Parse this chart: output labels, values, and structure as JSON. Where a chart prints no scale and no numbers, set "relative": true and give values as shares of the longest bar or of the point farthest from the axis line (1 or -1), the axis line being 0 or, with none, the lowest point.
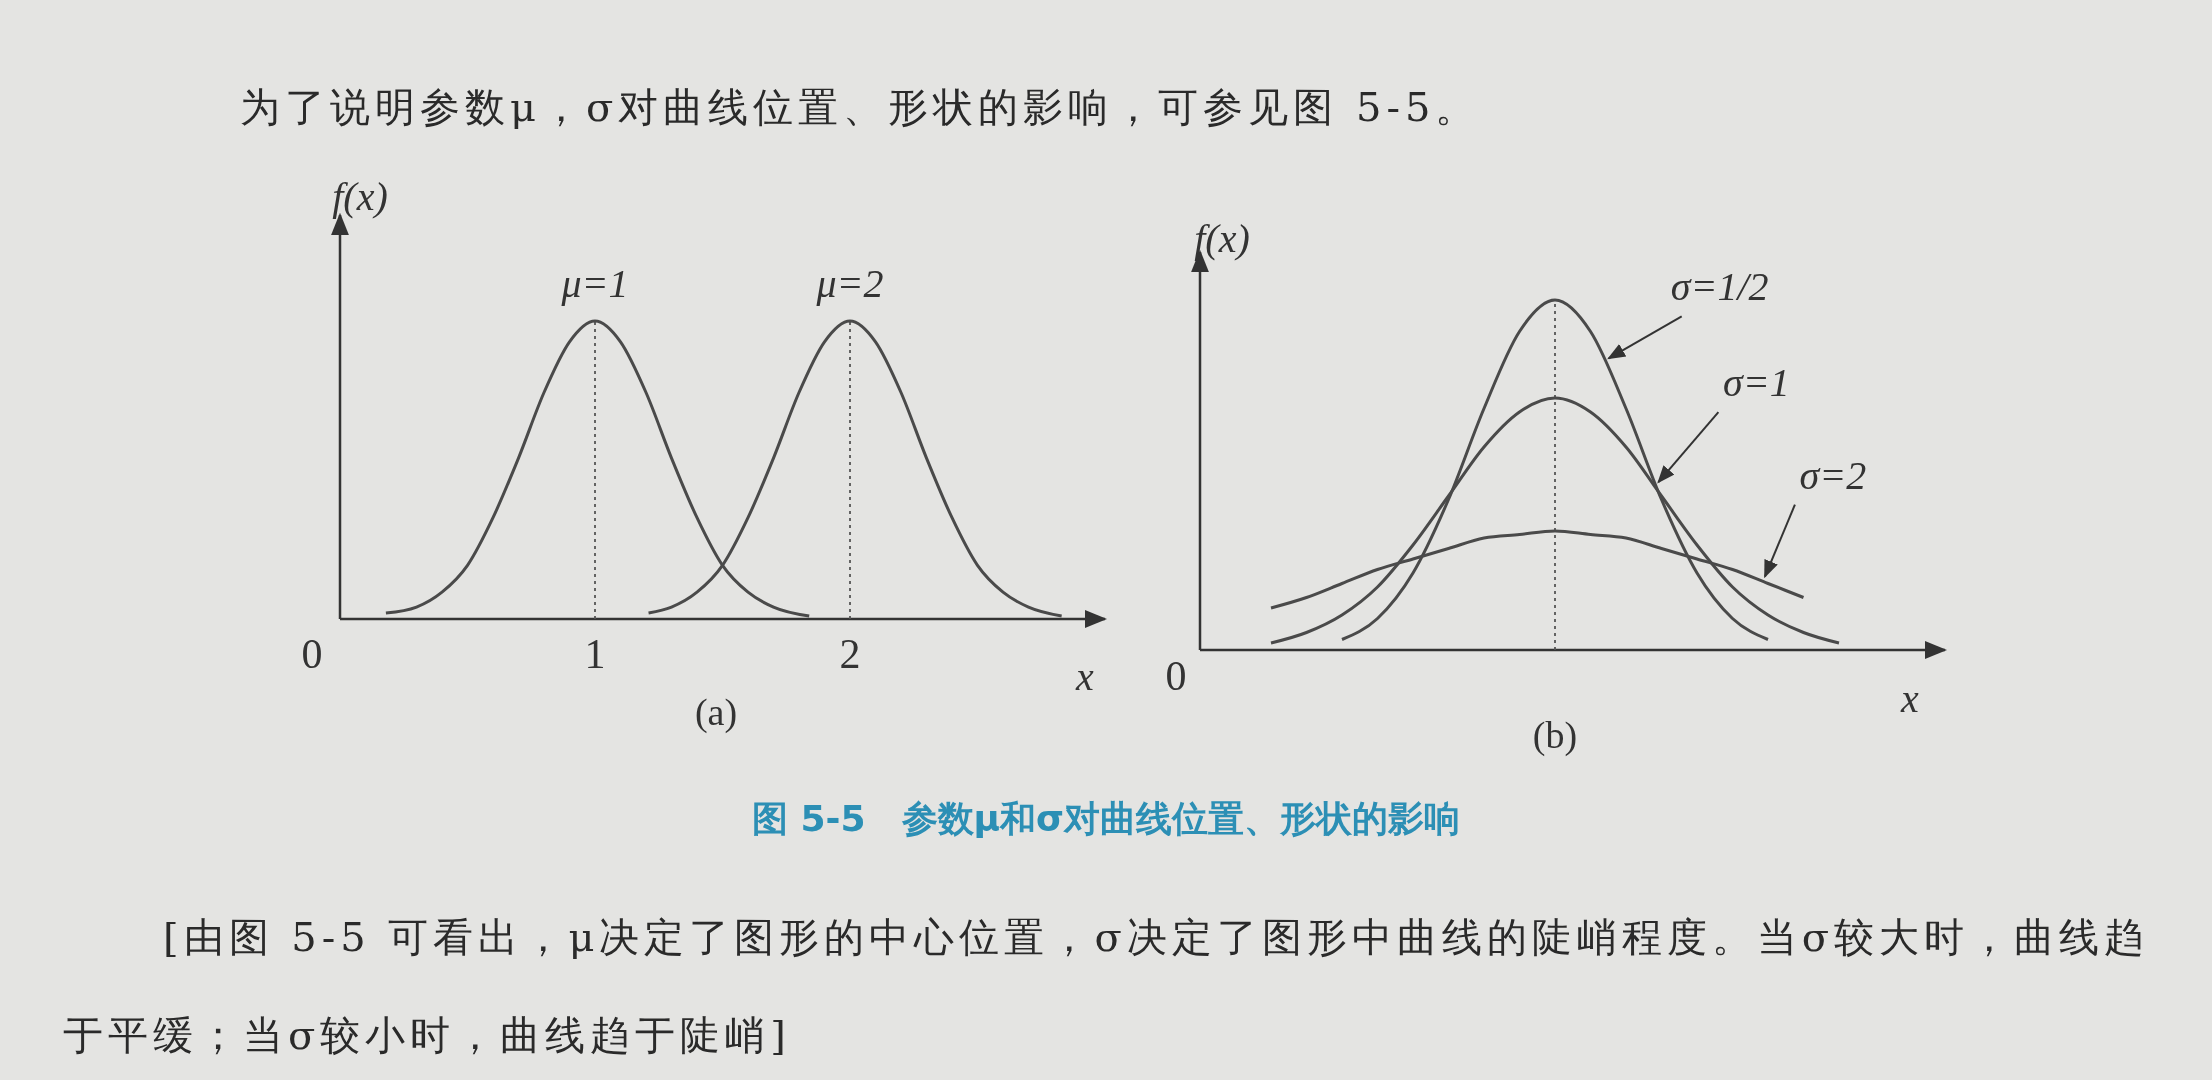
{
  "chart_data": [
    {
      "type": "line",
      "title": "(a)",
      "xlabel": "x",
      "ylabel": "f(x)",
      "relative": true,
      "xlim": [
        0,
        3
      ],
      "xticks": [
        0,
        1,
        2
      ],
      "tick_labels": "x",
      "grid": false,
      "legend": false,
      "line_style": "solid",
      "marker": "none",
      "ref_lines": [
        {
          "axis": "x",
          "value": 1,
          "line_style": "dotted"
        },
        {
          "axis": "x",
          "value": 2,
          "line_style": "dotted"
        }
      ],
      "series": [
        {
          "name": "μ=1",
          "color": "#4a4a4a",
          "x": [
            0.18,
            0.3,
            0.4,
            0.5,
            0.6,
            0.7,
            0.8,
            0.9,
            1,
            1.1,
            1.2,
            1.3,
            1.4,
            1.5,
            1.6,
            1.7,
            1.84
          ],
          "values": [
            0.02,
            0.04,
            0.09,
            0.18,
            0.34,
            0.54,
            0.76,
            0.93,
            1,
            0.93,
            0.76,
            0.54,
            0.34,
            0.18,
            0.09,
            0.04,
            0.01
          ]
        },
        {
          "name": "μ=2",
          "color": "#4a4a4a",
          "x": [
            1.21,
            1.3,
            1.4,
            1.5,
            1.6,
            1.7,
            1.8,
            1.9,
            2,
            2.1,
            2.2,
            2.3,
            2.4,
            2.5,
            2.6,
            2.7,
            2.83
          ],
          "values": [
            0.02,
            0.04,
            0.09,
            0.18,
            0.34,
            0.54,
            0.76,
            0.93,
            1,
            0.93,
            0.76,
            0.54,
            0.34,
            0.18,
            0.09,
            0.04,
            0.01
          ]
        }
      ]
    },
    {
      "type": "line",
      "title": "(b)",
      "xlabel": "x",
      "ylabel": "f(x)",
      "relative": true,
      "tick_labels": false,
      "grid": false,
      "legend": false,
      "line_style": "solid",
      "marker": "none",
      "annotations": [
        "0"
      ],
      "categories": [
        null,
        null,
        null,
        null,
        null,
        null,
        null,
        null,
        null,
        null,
        null,
        null,
        null,
        null,
        null,
        null,
        null,
        null,
        null,
        null,
        null
      ],
      "series": [
        {
          "name": "σ=1/2",
          "color": "#4a4a4a",
          "values": [
            null,
            null,
            null,
            null,
            0.03,
            0.09,
            0.22,
            0.43,
            0.69,
            0.91,
            1,
            0.91,
            0.69,
            0.43,
            0.22,
            0.09,
            0.03,
            null,
            null,
            null,
            null
          ]
        },
        {
          "name": "σ=1",
          "color": "#4a4a4a",
          "values": [
            null,
            null,
            0.02,
            0.05,
            0.1,
            0.18,
            0.3,
            0.44,
            0.58,
            0.68,
            0.72,
            0.68,
            0.58,
            0.44,
            0.3,
            0.18,
            0.1,
            0.05,
            0.02,
            null,
            null
          ]
        },
        {
          "name": "σ=2",
          "color": "#4a4a4a",
          "values": [
            null,
            null,
            0.12,
            0.15,
            0.19,
            0.23,
            0.26,
            0.29,
            0.32,
            0.33,
            0.34,
            0.33,
            0.32,
            0.29,
            0.26,
            0.23,
            0.19,
            0.15,
            null,
            null,
            null
          ]
        }
      ]
    },
    {
      "type": "other",
      "title": "图 5-5　参数μ和σ对曲线位置、形状的影响",
      "annotations": [
        "为了说明参数μ，σ对曲线位置、形状的影响，可参见图 5-5。",
        "[由图 5-5 可看出，μ决定了图形的中心位置，σ决定了图形中曲线的陡峭程度。当σ较大时，曲线趋于平缓；当σ较小时，曲线趋于陡峭]"
      ]
    }
  ]
}
